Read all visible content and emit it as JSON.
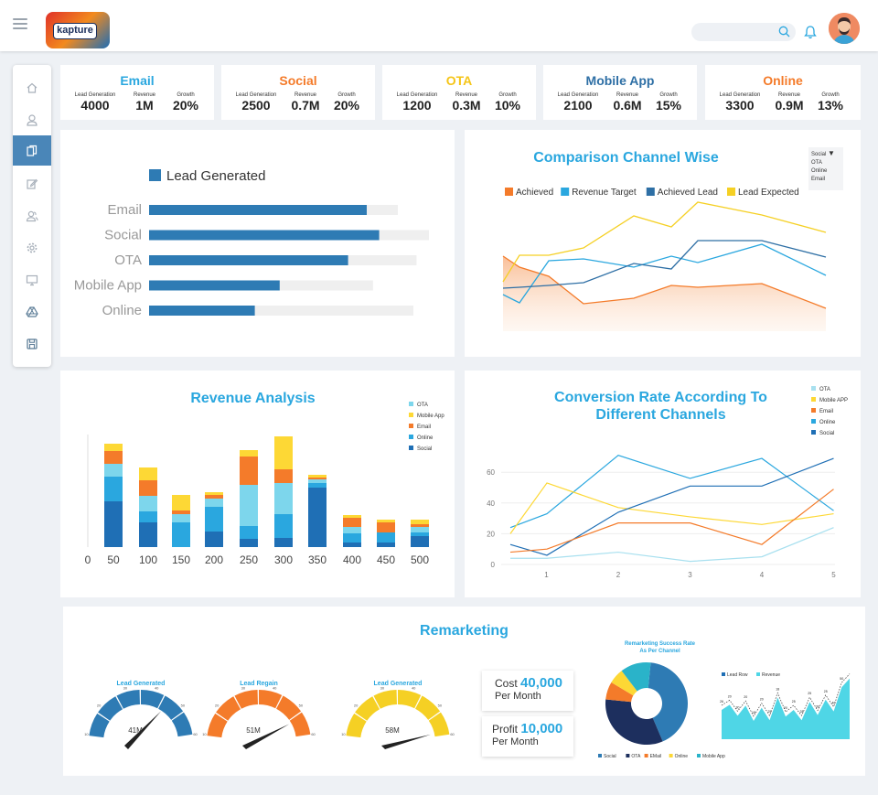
{
  "brand": {
    "logo_text": "kapture"
  },
  "header": {
    "search_placeholder": ""
  },
  "sidebar": {
    "items": [
      {
        "icon": "home-icon"
      },
      {
        "icon": "user-icon"
      },
      {
        "icon": "documents-icon"
      },
      {
        "icon": "edit-icon"
      },
      {
        "icon": "users-icon"
      },
      {
        "icon": "gear-icon"
      },
      {
        "icon": "monitor-icon"
      },
      {
        "icon": "drive-icon"
      },
      {
        "icon": "save-icon"
      }
    ],
    "active_index": 2
  },
  "kpis": [
    {
      "title": "Email",
      "color": "#2aa7df",
      "lead_label": "Lead Generation",
      "lead": "4000",
      "revenue_label": "Revenue",
      "revenue": "1M",
      "growth_label": "Growth",
      "growth": "20%"
    },
    {
      "title": "Social",
      "color": "#f47b2a",
      "lead_label": "Lead Generation",
      "lead": "2500",
      "revenue_label": "Revenue",
      "revenue": "0.7M",
      "growth_label": "Growth",
      "growth": "20%"
    },
    {
      "title": "OTA",
      "color": "#f5c518",
      "lead_label": "Lead Generation",
      "lead": "1200",
      "revenue_label": "Revenue",
      "revenue": "0.3M",
      "growth_label": "Growth",
      "growth": "10%"
    },
    {
      "title": "Mobile App",
      "color": "#2e6fa5",
      "lead_label": "Lead Generation",
      "lead": "2100",
      "revenue_label": "Revenue",
      "revenue": "0.6M",
      "growth_label": "Growth",
      "growth": "15%"
    },
    {
      "title": "Online",
      "color": "#f47b2a",
      "lead_label": "Lead Generation",
      "lead": "3300",
      "revenue_label": "Revenue",
      "revenue": "0.9M",
      "growth_label": "Growth",
      "growth": "13%"
    }
  ],
  "comparison": {
    "title": "Comparison Channel Wise",
    "dropdown": {
      "selected": "Social",
      "options": [
        "OTA",
        "Online",
        "Email"
      ]
    }
  },
  "revenue_panel": {
    "title": "Revenue Analysis"
  },
  "conversion_panel": {
    "title_line1": "Conversion Rate According To",
    "title_line2": "Different Channels"
  },
  "remarketing": {
    "title": "Remarketing",
    "gauges": [
      {
        "label": "Lead Generated",
        "value": "41M",
        "color": "#2e7bb4",
        "ticks": [
          "10",
          "20",
          "30",
          "40",
          "50",
          "60"
        ],
        "needle": 0.7
      },
      {
        "label": "Lead Regain",
        "value": "51M",
        "color": "#f47b2a",
        "ticks": [
          "10",
          "20",
          "30",
          "40",
          "50",
          "60"
        ],
        "needle": 0.87
      },
      {
        "label": "Lead Generated",
        "value": "58M",
        "color": "#f5d024",
        "ticks": [
          "10",
          "20",
          "30",
          "40",
          "50",
          "60"
        ],
        "needle": 0.98
      }
    ],
    "cost_label": "Cost",
    "cost_value": "40,000",
    "cost_unit": "Per Month",
    "profit_label": "Profit",
    "profit_value": "10,000",
    "profit_unit": "Per Month",
    "donut_title_line1": "Remarketing Success Rate",
    "donut_title_line2": "As Per Channel",
    "donut_legend": [
      "Social",
      "OTA",
      "EMail",
      "Online",
      "Mobile App"
    ],
    "area_legend": [
      "Lead Row",
      "Revenue"
    ]
  },
  "chart_data": [
    {
      "type": "bar",
      "title": "",
      "legend": [
        "Lead Generated"
      ],
      "categories": [
        "Email",
        "Social",
        "OTA",
        "Mobile App",
        "Online"
      ],
      "values": [
        0.7,
        0.74,
        0.64,
        0.42,
        0.34
      ],
      "background_values": [
        0.8,
        0.9,
        0.86,
        0.72,
        0.85
      ],
      "color": "#2e7bb4"
    },
    {
      "type": "line",
      "legend": [
        "Achieved",
        "Revenue Target",
        "Achieved Lead",
        "Lead Expected"
      ],
      "colors": [
        "#f47b2a",
        "#2aa7df",
        "#2e6fa5",
        "#f5d024"
      ],
      "x": [
        0,
        1,
        2,
        3,
        4,
        5,
        6,
        7,
        8
      ],
      "series": [
        {
          "name": "Achieved",
          "values": [
            82,
            70,
            60,
            30,
            36,
            50,
            48,
            52,
            25
          ]
        },
        {
          "name": "Revenue Target",
          "values": [
            40,
            31,
            77,
            79,
            70,
            82,
            75,
            95,
            61
          ]
        },
        {
          "name": "Achieved Lead",
          "values": [
            47,
            48,
            50,
            53,
            74,
            68,
            99,
            99,
            81
          ]
        },
        {
          "name": "Lead Expected",
          "values": [
            54,
            83,
            83,
            91,
            126,
            114,
            141,
            127,
            108
          ]
        }
      ],
      "ylim": [
        0,
        160
      ]
    },
    {
      "type": "bar",
      "stacked": true,
      "x_ticks": [
        "0",
        "50",
        "100",
        "150",
        "200",
        "250",
        "300",
        "350",
        "400",
        "450",
        "500"
      ],
      "categories": [
        "50",
        "100",
        "150",
        "200",
        "250",
        "300",
        "350",
        "400",
        "450",
        "500"
      ],
      "legend": [
        "OTA",
        "Mobile App",
        "Email",
        "Online",
        "Social"
      ],
      "colors": {
        "Social": "#1f6fb5",
        "Online": "#2aa7df",
        "OTA": "#7dd6ec",
        "Email": "#f47b2a",
        "Mobile App": "#fdd835"
      },
      "series": [
        {
          "name": "Social",
          "values": [
            50,
            27,
            0,
            17,
            9,
            10,
            65,
            5,
            5,
            12
          ]
        },
        {
          "name": "Online",
          "values": [
            27,
            12,
            27,
            27,
            14,
            26,
            5,
            10,
            11,
            4
          ]
        },
        {
          "name": "OTA",
          "values": [
            14,
            17,
            9,
            9,
            45,
            34,
            4,
            7,
            0,
            6
          ]
        },
        {
          "name": "Email",
          "values": [
            14,
            17,
            4,
            4,
            31,
            15,
            2,
            10,
            11,
            3
          ]
        },
        {
          "name": "Mobile App",
          "values": [
            8,
            14,
            17,
            3,
            7,
            36,
            3,
            3,
            3,
            5
          ]
        }
      ],
      "ylim": [
        0,
        130
      ]
    },
    {
      "type": "line",
      "x": [
        1,
        2,
        3,
        4,
        5
      ],
      "y_ticks": [
        "0",
        "20",
        "40",
        "60"
      ],
      "ylim": [
        0,
        70
      ],
      "legend": [
        "OTA",
        "Mobile APP",
        "Email",
        "Online",
        "Social"
      ],
      "colors": {
        "OTA": "#a8e0ef",
        "Mobile APP": "#fdd835",
        "Email": "#f47b2a",
        "Online": "#2aa7df",
        "Social": "#1f6fb5"
      },
      "series": [
        {
          "name": "Online",
          "x": [
            0,
            0.5,
            2,
            3,
            4,
            5
          ],
          "values": [
            24,
            33,
            71,
            56,
            69,
            35
          ]
        },
        {
          "name": "Mobile APP",
          "x": [
            0,
            0.5,
            2,
            3,
            4,
            5
          ],
          "values": [
            20,
            53,
            37,
            31,
            26,
            33
          ]
        },
        {
          "name": "Social",
          "x": [
            0,
            0.5,
            2,
            3,
            4,
            5
          ],
          "values": [
            13,
            6,
            34,
            51,
            51,
            69
          ]
        },
        {
          "name": "Email",
          "x": [
            0,
            0.5,
            2,
            3,
            4,
            5
          ],
          "values": [
            8,
            10,
            27,
            27,
            13,
            49
          ]
        },
        {
          "name": "OTA",
          "x": [
            0,
            0.5,
            2,
            3,
            4,
            5
          ],
          "values": [
            4,
            4,
            8,
            2,
            5,
            24
          ]
        }
      ]
    },
    {
      "type": "pie",
      "donut": true,
      "labels": [
        "Social",
        "OTA",
        "EMail",
        "Online",
        "Mobile App"
      ],
      "values": [
        42,
        33,
        7,
        6,
        12
      ],
      "colors": [
        "#2e7bb4",
        "#1d2f5e",
        "#f47b2a",
        "#fdd835",
        "#2ab3c9"
      ]
    },
    {
      "type": "area",
      "legend": [
        "Lead Row",
        "Revenue"
      ],
      "colors": [
        "#1f6fb5",
        "#4fd6e6"
      ],
      "values": [
        40,
        47,
        32,
        46,
        25,
        43,
        26,
        57,
        31,
        40,
        26,
        51,
        33,
        54,
        38,
        71,
        83
      ],
      "labels": [
        "26",
        "20",
        "30",
        "20",
        "18",
        "20",
        "25",
        "18",
        "20",
        "25",
        "28",
        "25",
        "30",
        "25",
        "40",
        "50",
        "62"
      ],
      "ylim": [
        0,
        90
      ]
    }
  ]
}
